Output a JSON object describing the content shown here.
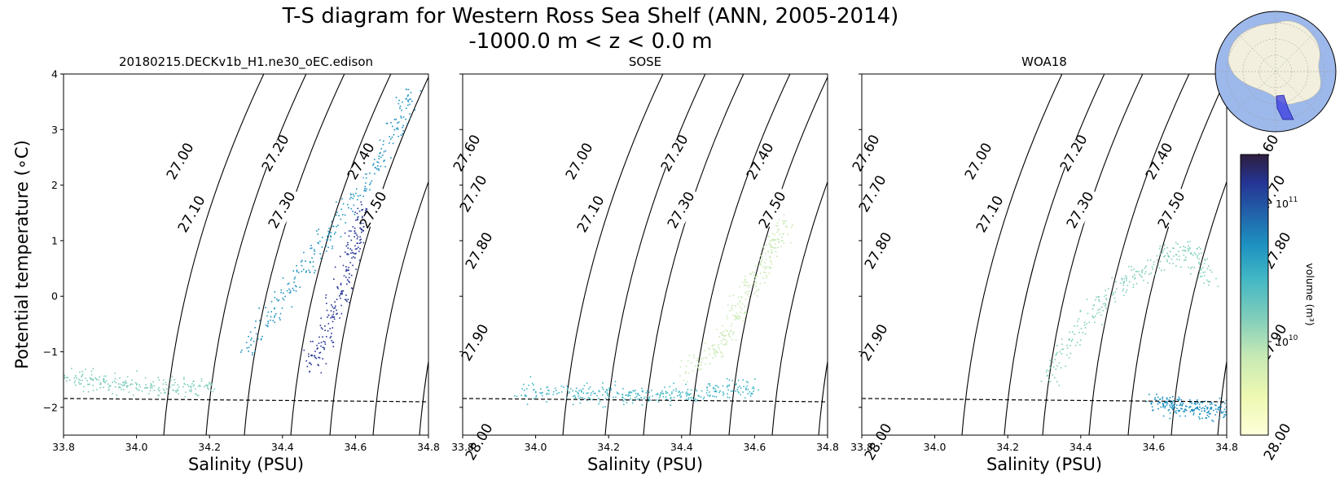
{
  "title_line1": "T-S diagram for Western Ross Sea Shelf (ANN, 2005-2014)",
  "title_line2": "-1000.0 m < z < 0.0 m",
  "chart_data": [
    {
      "type": "scatter",
      "panel_title": "20180215.DECKv1b_H1.ne30_oEC.edison",
      "xlabel": "Salinity (PSU)",
      "ylabel": "Potential temperature (∘C)",
      "xlim": [
        33.8,
        34.8
      ],
      "ylim": [
        -2.5,
        4
      ],
      "xticks": [
        "33.8",
        "34.0",
        "34.2",
        "34.4",
        "34.6",
        "34.8"
      ],
      "yticks": [
        "−2",
        "−1",
        "0",
        "1",
        "2",
        "3",
        "4"
      ],
      "freezing_line": {
        "x": [
          33.8,
          34.8
        ],
        "y": [
          -1.84,
          -1.9
        ]
      },
      "density_contours": [
        "27.00",
        "27.10",
        "27.20",
        "27.30",
        "27.40",
        "27.50",
        "27.60",
        "27.70",
        "27.80",
        "27.90",
        "28.00"
      ],
      "point_clusters": [
        {
          "x": [
            33.8,
            33.9,
            34.0,
            34.1,
            34.2
          ],
          "y": [
            -1.4,
            -1.55,
            -1.6,
            -1.65,
            -1.6
          ],
          "volume": "1e10"
        },
        {
          "x": [
            34.3,
            34.4,
            34.5,
            34.6,
            34.7,
            34.75
          ],
          "y": [
            -1.0,
            0.0,
            0.9,
            1.8,
            2.8,
            3.7
          ],
          "volume": "3e10"
        },
        {
          "x": [
            34.48,
            34.52,
            34.56,
            34.6,
            34.62
          ],
          "y": [
            -1.2,
            -0.6,
            0.2,
            1.0,
            1.6
          ],
          "volume": "1e11"
        }
      ]
    },
    {
      "type": "scatter",
      "panel_title": "SOSE",
      "xlabel": "Salinity (PSU)",
      "xlim": [
        33.8,
        34.8
      ],
      "ylim": [
        -2.5,
        4
      ],
      "xticks": [
        "33.8",
        "34.0",
        "34.2",
        "34.4",
        "34.6",
        "34.8"
      ],
      "freezing_line": {
        "x": [
          33.8,
          34.8
        ],
        "y": [
          -1.84,
          -1.9
        ]
      },
      "density_contours": [
        "27.00",
        "27.10",
        "27.20",
        "27.30",
        "27.40",
        "27.50",
        "27.60",
        "27.70",
        "27.80",
        "27.90",
        "28.00"
      ],
      "point_clusters": [
        {
          "x": [
            33.95,
            34.1,
            34.2,
            34.3,
            34.4,
            34.5,
            34.6
          ],
          "y": [
            -1.7,
            -1.72,
            -1.75,
            -1.78,
            -1.75,
            -1.7,
            -1.65
          ],
          "volume": "2e10"
        },
        {
          "x": [
            34.4,
            34.5,
            34.55,
            34.6,
            34.65,
            34.68
          ],
          "y": [
            -1.4,
            -0.9,
            -0.3,
            0.3,
            0.9,
            1.4
          ],
          "volume": "5e9"
        }
      ]
    },
    {
      "type": "scatter",
      "panel_title": "WOA18",
      "xlabel": "Salinity (PSU)",
      "xlim": [
        33.8,
        34.8
      ],
      "ylim": [
        -2.5,
        4
      ],
      "xticks": [
        "33.8",
        "34.0",
        "34.2",
        "34.4",
        "34.6",
        "34.8"
      ],
      "freezing_line": {
        "x": [
          33.8,
          34.8
        ],
        "y": [
          -1.84,
          -1.9
        ]
      },
      "density_contours": [
        "27.00",
        "27.10",
        "27.20",
        "27.30",
        "27.40",
        "27.50",
        "27.60",
        "27.70",
        "27.80",
        "27.90",
        "28.00"
      ],
      "point_clusters": [
        {
          "x": [
            34.3,
            34.4,
            34.5,
            34.6,
            34.7,
            34.75
          ],
          "y": [
            -1.5,
            -0.5,
            0.2,
            0.6,
            0.9,
            0.3
          ],
          "volume": "1e10"
        },
        {
          "x": [
            34.6,
            34.65,
            34.7,
            34.75,
            34.8
          ],
          "y": [
            -1.9,
            -1.95,
            -2.0,
            -2.02,
            -2.05
          ],
          "volume": "3e10"
        }
      ]
    }
  ],
  "colorbar": {
    "label": "volume (m³)",
    "ticks": [
      {
        "text": "10",
        "exp": "11"
      },
      {
        "text": "10",
        "exp": "10"
      }
    ],
    "colormap": [
      "#ffffd9",
      "#c7e9b4",
      "#7fcdbb",
      "#41b6c4",
      "#1d91c0",
      "#225ea8",
      "#253494",
      "#2d1e3e"
    ]
  },
  "inset_map": {
    "ocean_color": "#9db8ea",
    "land_color": "#f2efde",
    "region_color": "#3a3ae0"
  }
}
